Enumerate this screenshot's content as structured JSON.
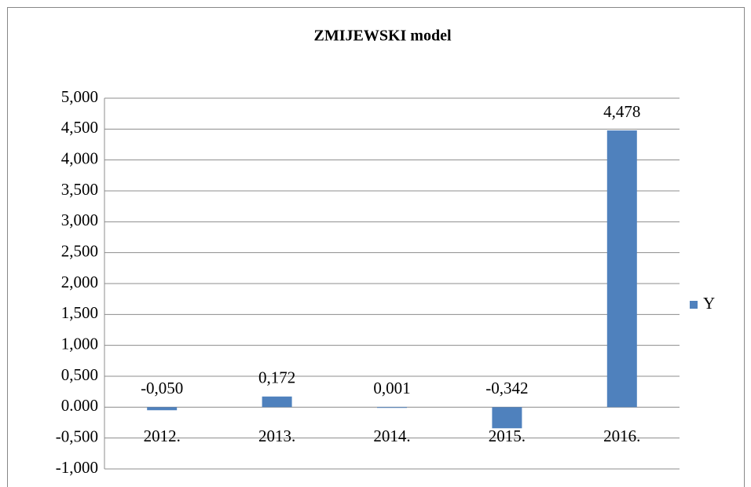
{
  "chart_data": {
    "type": "bar",
    "title": "ZMIJEWSKI model",
    "categories": [
      "2012.",
      "2013.",
      "2014.",
      "2015.",
      "2016."
    ],
    "series": [
      {
        "name": "Y",
        "color": "#4f81bd",
        "values": [
          -0.05,
          0.172,
          0.001,
          -0.342,
          4.478
        ],
        "value_labels": [
          "-0,050",
          "0,172",
          "0,001",
          "-0,342",
          "4,478"
        ]
      }
    ],
    "ylim": [
      -1,
      5
    ],
    "yticks": [
      {
        "value": -1,
        "label": "-1,000"
      },
      {
        "value": -0.5,
        "label": "-0,500"
      },
      {
        "value": 0,
        "label": "0.000"
      },
      {
        "value": 0.5,
        "label": "0,500"
      },
      {
        "value": 1,
        "label": "1,000"
      },
      {
        "value": 1.5,
        "label": "1,500"
      },
      {
        "value": 2,
        "label": "2,000"
      },
      {
        "value": 2.5,
        "label": "2,500"
      },
      {
        "value": 3,
        "label": "3,000"
      },
      {
        "value": 3.5,
        "label": "3,500"
      },
      {
        "value": 4,
        "label": "4,000"
      },
      {
        "value": 4.5,
        "label": "4,500"
      },
      {
        "value": 5,
        "label": "5,000"
      }
    ],
    "grid": true,
    "legend": "right"
  }
}
